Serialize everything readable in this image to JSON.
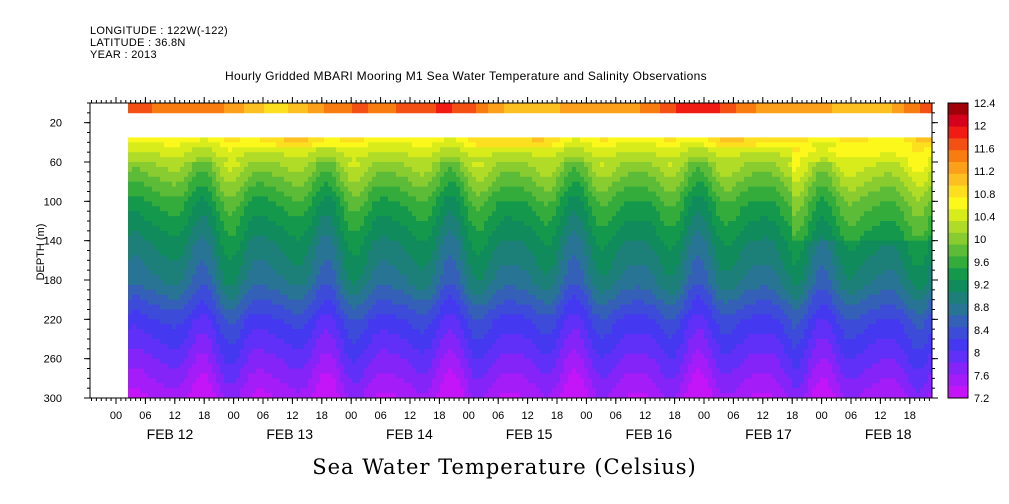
{
  "header": {
    "longitude": "LONGITUDE : 122W(-122)",
    "latitude": "LATITUDE : 36.8N",
    "year": "YEAR : 2013"
  },
  "chart_data": {
    "type": "heatmap",
    "title": "Hourly Gridded MBARI Mooring M1 Sea Water Temperature and Salinity Observations",
    "xlabel": "Sea Water Temperature (Celsius)",
    "ylabel": "DEPTH (m)",
    "ylim": [
      300,
      0
    ],
    "y_ticks": [
      20,
      60,
      100,
      140,
      180,
      220,
      260,
      300
    ],
    "x_hour_ticks": [
      "00",
      "06",
      "12",
      "18",
      "00",
      "06",
      "12",
      "18",
      "00",
      "06",
      "12",
      "18",
      "00",
      "06",
      "12",
      "18",
      "00",
      "06",
      "12",
      "18",
      "00",
      "06",
      "12",
      "18",
      "00",
      "06",
      "12",
      "18"
    ],
    "x_day_labels": [
      "FEB 12",
      "FEB 13",
      "FEB 14",
      "FEB 15",
      "FEB 16",
      "FEB 17",
      "FEB 18"
    ],
    "colorbar": {
      "levels": [
        12.4,
        12,
        11.6,
        11.2,
        10.8,
        10.4,
        10,
        9.6,
        9.2,
        8.8,
        8.4,
        8,
        7.6,
        7.2
      ],
      "colors": [
        "#a0000a",
        "#d4001c",
        "#f01c14",
        "#f45014",
        "#f87c10",
        "#fca01c",
        "#fcc020",
        "#fce020",
        "#fcf81c",
        "#d8ec1c",
        "#b0dc28",
        "#88cc30",
        "#5cbc38",
        "#34ac3c",
        "#14984c",
        "#108c5c",
        "#1c8078",
        "#287494",
        "#3460b8",
        "#3c4cd8",
        "#4438f0",
        "#6030f8",
        "#8424f8",
        "#a41cf8",
        "#c414f8"
      ]
    },
    "depth_profile_typical": [
      {
        "depth": 10,
        "temp": 11.4
      },
      {
        "depth": 40,
        "temp": 10.5
      },
      {
        "depth": 60,
        "temp": 10.1
      },
      {
        "depth": 100,
        "temp": 9.5
      },
      {
        "depth": 140,
        "temp": 9.1
      },
      {
        "depth": 180,
        "temp": 8.8
      },
      {
        "depth": 220,
        "temp": 8.2
      },
      {
        "depth": 260,
        "temp": 7.8
      },
      {
        "depth": 300,
        "temp": 7.4
      }
    ]
  }
}
